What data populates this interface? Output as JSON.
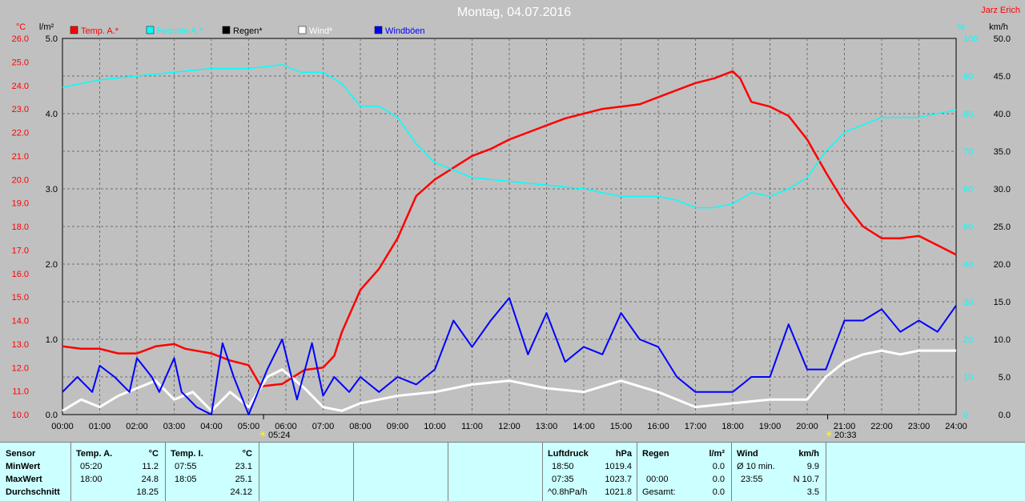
{
  "header": {
    "title": "Montag, 04.07.2016",
    "author": "Jarz Erich"
  },
  "units": {
    "temp": "°C",
    "rain": "l/m²",
    "humidity": "%",
    "wind": "km/h"
  },
  "legend": [
    {
      "name": "Temp. A.*",
      "color": "#ff0000"
    },
    {
      "name": "Feuchte A.*",
      "color": "#00ffff"
    },
    {
      "name": "Regen*",
      "color": "#000000"
    },
    {
      "name": "Wind*",
      "color": "#ffffff"
    },
    {
      "name": "Windböen",
      "color": "#0000ff"
    }
  ],
  "sun_events": {
    "sunrise": {
      "time": "05:24",
      "hour": 5.4
    },
    "sunset": {
      "time": "20:33",
      "hour": 20.55
    }
  },
  "chart_data": {
    "type": "line",
    "x_range": [
      0,
      24
    ],
    "x_ticks": [
      "00:00",
      "01:00",
      "02:00",
      "03:00",
      "04:00",
      "05:00",
      "06:00",
      "07:00",
      "08:00",
      "09:00",
      "10:00",
      "11:00",
      "12:00",
      "13:00",
      "14:00",
      "15:00",
      "16:00",
      "17:00",
      "18:00",
      "19:00",
      "20:00",
      "21:00",
      "22:00",
      "23:00",
      "24:00"
    ],
    "temp_axis": {
      "range": [
        10,
        26
      ],
      "ticks": [
        "10.0",
        "11.0",
        "12.0",
        "13.0",
        "14.0",
        "15.0",
        "16.0",
        "17.0",
        "18.0",
        "19.0",
        "20.0",
        "21.0",
        "22.0",
        "23.0",
        "24.0",
        "25.0",
        "26.0"
      ]
    },
    "rain_axis": {
      "range": [
        0,
        5
      ],
      "ticks": [
        "0.0",
        "1.0",
        "2.0",
        "3.0",
        "4.0",
        "5.0"
      ]
    },
    "humidity_axis": {
      "range": [
        0,
        100
      ],
      "ticks": [
        "0",
        "10",
        "20",
        "30",
        "40",
        "50",
        "60",
        "70",
        "80",
        "90",
        "100"
      ]
    },
    "wind_axis": {
      "range": [
        0,
        50
      ],
      "ticks": [
        "0.0",
        "5.0",
        "10.0",
        "15.0",
        "20.0",
        "25.0",
        "30.0",
        "35.0",
        "40.0",
        "45.0",
        "50.0"
      ]
    },
    "grid": true,
    "series": [
      {
        "name": "Temp. A.*",
        "axis": "temp",
        "color": "#ff0000",
        "points": [
          [
            0,
            12.9
          ],
          [
            0.5,
            12.8
          ],
          [
            1,
            12.8
          ],
          [
            1.5,
            12.6
          ],
          [
            2,
            12.6
          ],
          [
            2.5,
            12.9
          ],
          [
            3,
            13.0
          ],
          [
            3.3,
            12.8
          ],
          [
            4,
            12.6
          ],
          [
            4.5,
            12.3
          ],
          [
            5,
            12.1
          ],
          [
            5.33,
            11.2
          ],
          [
            5.9,
            11.3
          ],
          [
            6.5,
            11.9
          ],
          [
            7,
            12.0
          ],
          [
            7.3,
            12.5
          ],
          [
            7.5,
            13.5
          ],
          [
            8,
            15.3
          ],
          [
            8.5,
            16.2
          ],
          [
            9,
            17.5
          ],
          [
            9.5,
            19.3
          ],
          [
            10,
            20.0
          ],
          [
            10.5,
            20.5
          ],
          [
            11,
            21.0
          ],
          [
            11.5,
            21.3
          ],
          [
            12,
            21.7
          ],
          [
            12.5,
            22.0
          ],
          [
            13,
            22.3
          ],
          [
            13.5,
            22.6
          ],
          [
            14,
            22.8
          ],
          [
            14.5,
            23.0
          ],
          [
            15,
            23.1
          ],
          [
            15.5,
            23.2
          ],
          [
            16,
            23.5
          ],
          [
            16.5,
            23.8
          ],
          [
            17,
            24.1
          ],
          [
            17.5,
            24.3
          ],
          [
            18,
            24.6
          ],
          [
            18.2,
            24.3
          ],
          [
            18.5,
            23.3
          ],
          [
            19,
            23.1
          ],
          [
            19.5,
            22.7
          ],
          [
            20,
            21.7
          ],
          [
            20.5,
            20.3
          ],
          [
            21,
            19.0
          ],
          [
            21.5,
            18.0
          ],
          [
            22,
            17.5
          ],
          [
            22.5,
            17.5
          ],
          [
            23,
            17.6
          ],
          [
            23.5,
            17.2
          ],
          [
            24,
            16.8
          ]
        ]
      },
      {
        "name": "Feuchte A.*",
        "axis": "humidity",
        "color": "#00ffff",
        "points": [
          [
            0,
            87
          ],
          [
            1,
            89
          ],
          [
            2,
            90
          ],
          [
            3,
            91
          ],
          [
            4,
            92
          ],
          [
            5,
            92
          ],
          [
            5.9,
            93
          ],
          [
            6.4,
            91
          ],
          [
            7,
            91
          ],
          [
            7.5,
            88
          ],
          [
            8,
            82
          ],
          [
            8.5,
            82
          ],
          [
            9,
            79
          ],
          [
            9.5,
            72
          ],
          [
            10,
            67
          ],
          [
            10.5,
            65
          ],
          [
            11,
            63
          ],
          [
            12,
            62
          ],
          [
            13,
            61
          ],
          [
            14,
            60
          ],
          [
            15,
            58
          ],
          [
            16,
            58
          ],
          [
            16.5,
            57
          ],
          [
            17,
            55
          ],
          [
            17.5,
            55
          ],
          [
            18,
            56
          ],
          [
            18.5,
            59
          ],
          [
            19,
            58
          ],
          [
            19.5,
            60
          ],
          [
            20,
            63
          ],
          [
            20.5,
            70
          ],
          [
            21,
            75
          ],
          [
            21.5,
            77
          ],
          [
            22,
            79
          ],
          [
            23,
            79
          ],
          [
            24,
            81
          ]
        ]
      },
      {
        "name": "Wind*",
        "axis": "wind",
        "color": "#ffffff",
        "points": [
          [
            0,
            0.5
          ],
          [
            0.5,
            2
          ],
          [
            1,
            1
          ],
          [
            1.5,
            2.5
          ],
          [
            2,
            3.5
          ],
          [
            2.5,
            4.5
          ],
          [
            3,
            2
          ],
          [
            3.5,
            3
          ],
          [
            4,
            0.5
          ],
          [
            4.5,
            3
          ],
          [
            5,
            1
          ],
          [
            5.5,
            5
          ],
          [
            5.9,
            6
          ],
          [
            6.5,
            3.5
          ],
          [
            7,
            1
          ],
          [
            7.5,
            0.5
          ],
          [
            8,
            1.5
          ],
          [
            9,
            2.5
          ],
          [
            10,
            3
          ],
          [
            11,
            4
          ],
          [
            12,
            4.5
          ],
          [
            13,
            3.5
          ],
          [
            14,
            3
          ],
          [
            15,
            4.5
          ],
          [
            16,
            3
          ],
          [
            17,
            1
          ],
          [
            18,
            1.5
          ],
          [
            19,
            2
          ],
          [
            20,
            2
          ],
          [
            20.5,
            5
          ],
          [
            21,
            7
          ],
          [
            21.5,
            8
          ],
          [
            22,
            8.5
          ],
          [
            22.5,
            8
          ],
          [
            23,
            8.5
          ],
          [
            24,
            8.5
          ]
        ]
      },
      {
        "name": "Windböen",
        "axis": "wind",
        "color": "#0000ff",
        "points": [
          [
            0,
            3
          ],
          [
            0.4,
            5
          ],
          [
            0.8,
            3
          ],
          [
            1,
            6.5
          ],
          [
            1.4,
            5
          ],
          [
            1.8,
            3
          ],
          [
            2,
            7.5
          ],
          [
            2.4,
            5
          ],
          [
            2.6,
            3
          ],
          [
            3,
            7.5
          ],
          [
            3.2,
            3
          ],
          [
            3.6,
            1
          ],
          [
            4,
            0
          ],
          [
            4.3,
            9.5
          ],
          [
            4.6,
            5
          ],
          [
            5,
            0
          ],
          [
            5.5,
            6
          ],
          [
            5.9,
            10
          ],
          [
            6.3,
            2
          ],
          [
            6.7,
            9.5
          ],
          [
            7,
            2.5
          ],
          [
            7.3,
            5
          ],
          [
            7.7,
            3
          ],
          [
            8,
            5
          ],
          [
            8.5,
            3
          ],
          [
            9,
            5
          ],
          [
            9.5,
            4
          ],
          [
            10,
            6
          ],
          [
            10.5,
            12.5
          ],
          [
            11,
            9
          ],
          [
            11.5,
            12.5
          ],
          [
            12,
            15.5
          ],
          [
            12.5,
            8
          ],
          [
            13,
            13.5
          ],
          [
            13.5,
            7
          ],
          [
            14,
            9
          ],
          [
            14.5,
            8
          ],
          [
            15,
            13.5
          ],
          [
            15.5,
            10
          ],
          [
            16,
            9
          ],
          [
            16.5,
            5
          ],
          [
            17,
            3
          ],
          [
            17.5,
            3
          ],
          [
            18,
            3
          ],
          [
            18.5,
            5
          ],
          [
            19,
            5
          ],
          [
            19.5,
            12
          ],
          [
            20,
            6
          ],
          [
            20.5,
            6
          ],
          [
            21,
            12.5
          ],
          [
            21.5,
            12.5
          ],
          [
            22,
            14
          ],
          [
            22.5,
            11
          ],
          [
            23,
            12.5
          ],
          [
            23.5,
            11
          ],
          [
            24,
            14.5
          ]
        ]
      }
    ]
  },
  "panel": {
    "sensor": {
      "label": "Sensor",
      "rows": [
        "MinWert",
        "MaxWert",
        "Durchschnitt"
      ]
    },
    "temp_a": {
      "title": "Temp. A.",
      "unit": "°C",
      "min_time": "05:20",
      "min_val": "11.2",
      "max_time": "18:00",
      "max_val": "24.8",
      "avg": "18.25"
    },
    "temp_i": {
      "title": "Temp. I.",
      "unit": "°C",
      "min_time": "07:55",
      "min_val": "23.1",
      "max_time": "18:05",
      "max_val": "25.1",
      "avg": "24.12"
    },
    "pressure": {
      "title": "Luftdruck",
      "unit": "hPa",
      "min_time": "18:50",
      "min_val": "1019.4",
      "max_time": "07:35",
      "max_val": "1023.7",
      "trend": "^0.8hPa/h",
      "avg": "1021.8"
    },
    "rain": {
      "title": "Regen",
      "unit": "l/m²",
      "r1_label": "",
      "r1_val": "0.0",
      "r2_label": "00:00",
      "r2_val": "0.0",
      "r3_label": "Gesamt:",
      "r3_val": "0.0"
    },
    "wind": {
      "title": "Wind",
      "unit": "km/h",
      "r1_label": "Ø 10 min.",
      "r1_val": "9.9",
      "r2_label": "23:55",
      "r2_val": "N 10.7",
      "r3_val": "3.5"
    }
  }
}
